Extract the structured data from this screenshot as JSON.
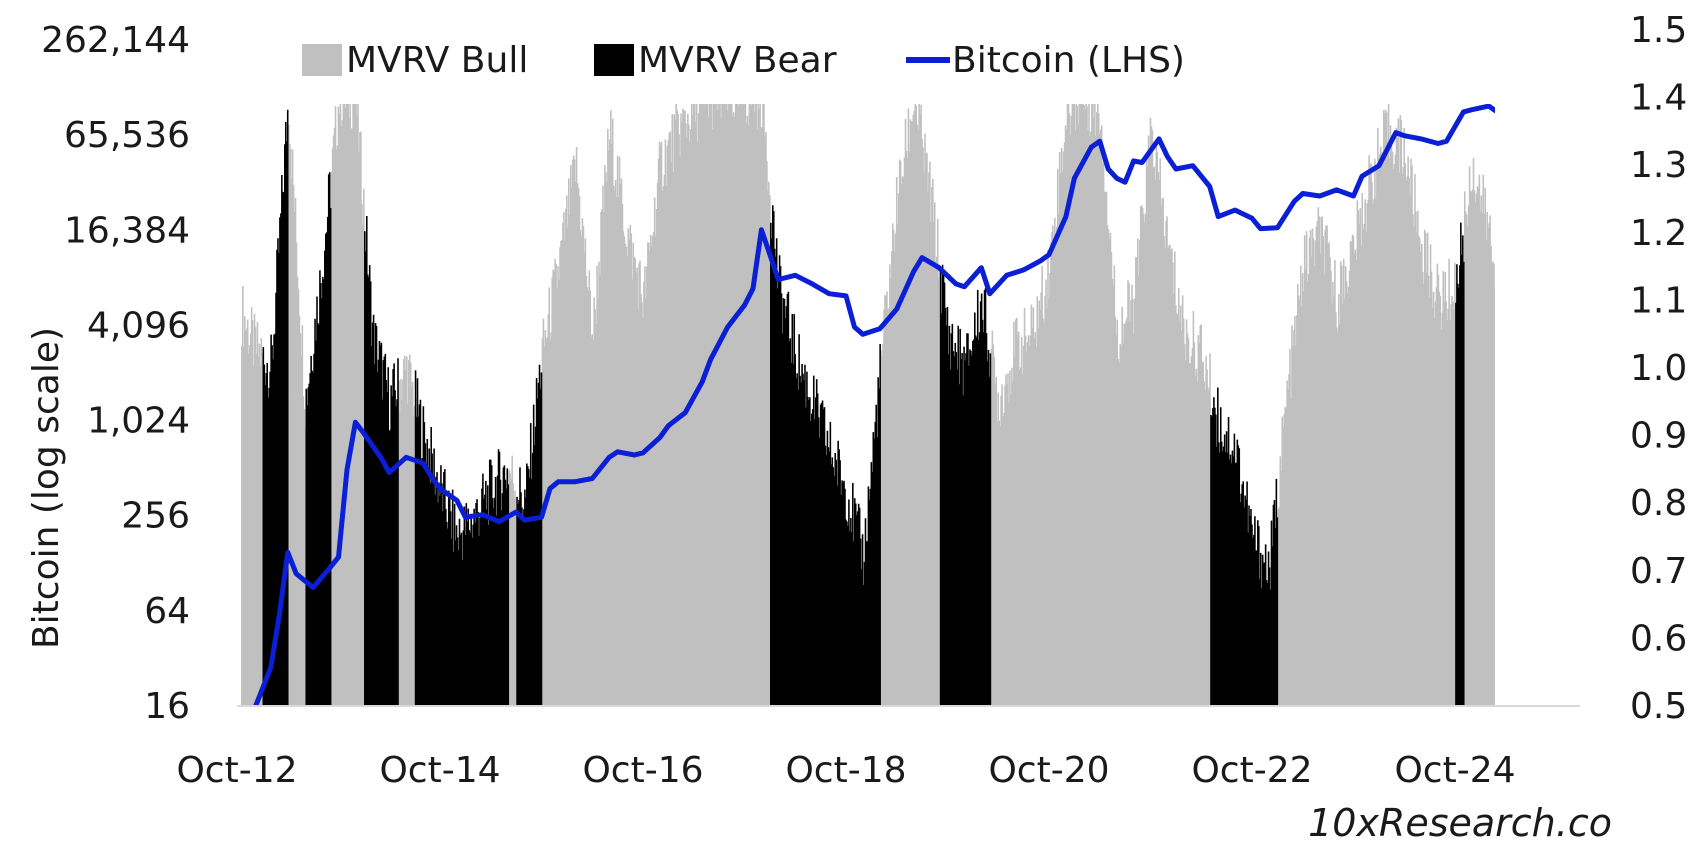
{
  "chart_data": {
    "type": "area",
    "ylabel_left": "Bitcoin (log scale)",
    "ylabel_right": "",
    "left_axis": {
      "scale": "log2",
      "ylim": [
        16,
        262144
      ],
      "ticks": [
        16,
        64,
        256,
        1024,
        4096,
        16384,
        65536,
        262144
      ],
      "tick_labels": [
        "16",
        "64",
        "256",
        "1,024",
        "4,096",
        "16,384",
        "65,536",
        "262,144"
      ]
    },
    "right_axis": {
      "scale": "linear",
      "ylim": [
        0.5,
        1.5
      ],
      "ticks": [
        0.5,
        0.6,
        0.7,
        0.8,
        0.9,
        1.0,
        1.1,
        1.2,
        1.3,
        1.4,
        1.5
      ],
      "tick_labels": [
        "0.5",
        "0.6",
        "0.7",
        "0.8",
        "0.9",
        "1.0",
        "1.1",
        "1.2",
        "1.3",
        "1.4",
        "1.5"
      ]
    },
    "x_axis": {
      "range": [
        "2012-10",
        "2025-06"
      ],
      "ticks": [
        "2012-10",
        "2014-10",
        "2016-10",
        "2018-10",
        "2020-10",
        "2022-10",
        "2024-10"
      ],
      "tick_labels": [
        "Oct-12",
        "Oct-14",
        "Oct-16",
        "Oct-18",
        "Oct-20",
        "Oct-22",
        "Oct-24"
      ]
    },
    "legend": {
      "placement": "top",
      "entries": [
        {
          "label": "MVRV Bull",
          "color": "#c0c0c0",
          "kind": "area"
        },
        {
          "label": "MVRV Bear",
          "color": "#000000",
          "kind": "area"
        },
        {
          "label": "Bitcoin (LHS)",
          "color": "#0a1fd6",
          "kind": "line"
        }
      ]
    },
    "series": [
      {
        "name": "MVRV Bull",
        "axis": "right",
        "color": "#c0c0c0",
        "regime": "bull",
        "segments": [
          [
            "2012-10",
            "2013-01"
          ],
          [
            "2013-04",
            "2013-06"
          ],
          [
            "2013-09",
            "2014-01"
          ],
          [
            "2014-05",
            "2014-07"
          ],
          [
            "2015-06",
            "2015-07"
          ],
          [
            "2015-10",
            "2018-01"
          ],
          [
            "2019-02",
            "2019-09"
          ],
          [
            "2020-03",
            "2022-05"
          ],
          [
            "2023-01",
            "2024-10"
          ],
          [
            "2024-11",
            "2025-05"
          ]
        ],
        "x": [
          "2012-10",
          "2012-12",
          "2013-02",
          "2013-04",
          "2013-06",
          "2013-08",
          "2013-10",
          "2013-12",
          "2014-02",
          "2014-04",
          "2014-06",
          "2014-08",
          "2014-10",
          "2014-12",
          "2015-02",
          "2015-04",
          "2015-06",
          "2015-08",
          "2015-10",
          "2015-12",
          "2016-02",
          "2016-04",
          "2016-06",
          "2016-08",
          "2016-10",
          "2016-12",
          "2017-02",
          "2017-04",
          "2017-06",
          "2017-08",
          "2017-10",
          "2017-12",
          "2018-02",
          "2018-04",
          "2018-06",
          "2018-08",
          "2018-10",
          "2018-12",
          "2019-02",
          "2019-04",
          "2019-06",
          "2019-08",
          "2019-10",
          "2019-12",
          "2020-02",
          "2020-04",
          "2020-06",
          "2020-08",
          "2020-10",
          "2020-12",
          "2021-02",
          "2021-04",
          "2021-06",
          "2021-08",
          "2021-10",
          "2021-12",
          "2022-02",
          "2022-04",
          "2022-06",
          "2022-08",
          "2022-10",
          "2022-12",
          "2023-02",
          "2023-04",
          "2023-06",
          "2023-08",
          "2023-10",
          "2023-12",
          "2024-02",
          "2024-04",
          "2024-06",
          "2024-08",
          "2024-10",
          "2024-12",
          "2025-02",
          "2025-04",
          "2025-05"
        ],
        "values": [
          1.1,
          1.03,
          1.0,
          1.4,
          0.95,
          1.15,
          1.4,
          1.4,
          1.05,
          0.95,
          1.0,
          0.9,
          0.82,
          0.75,
          0.78,
          0.82,
          0.85,
          0.8,
          1.02,
          1.15,
          1.3,
          1.05,
          1.35,
          1.2,
          1.1,
          1.3,
          1.35,
          1.38,
          1.4,
          1.4,
          1.4,
          1.4,
          1.12,
          1.02,
          0.95,
          0.88,
          0.82,
          0.72,
          1.0,
          1.25,
          1.4,
          1.25,
          1.05,
          1.0,
          1.1,
          0.95,
          1.03,
          1.05,
          1.15,
          1.38,
          1.4,
          1.38,
          1.05,
          1.1,
          1.35,
          1.18,
          1.05,
          1.02,
          0.92,
          0.88,
          0.75,
          0.7,
          0.95,
          1.15,
          1.2,
          1.1,
          1.18,
          1.28,
          1.35,
          1.32,
          1.18,
          1.1,
          1.12,
          1.3,
          1.2,
          1.0,
          1.05
        ]
      },
      {
        "name": "MVRV Bear",
        "axis": "right",
        "color": "#000000",
        "regime": "bear",
        "segments": [
          [
            "2013-01",
            "2013-04"
          ],
          [
            "2013-06",
            "2013-09"
          ],
          [
            "2014-01",
            "2014-05"
          ],
          [
            "2014-07",
            "2015-06"
          ],
          [
            "2015-07",
            "2015-10"
          ],
          [
            "2018-01",
            "2019-02"
          ],
          [
            "2019-09",
            "2020-03"
          ],
          [
            "2022-05",
            "2023-01"
          ],
          [
            "2024-10",
            "2024-11"
          ],
          [
            "2025-05",
            "2025-06"
          ]
        ]
      },
      {
        "name": "Bitcoin (LHS)",
        "axis": "left",
        "color": "#0a1fd6",
        "x": [
          "2012-10",
          "2012-12",
          "2013-02",
          "2013-03",
          "2013-04",
          "2013-05",
          "2013-07",
          "2013-09",
          "2013-10",
          "2013-11",
          "2013-12",
          "2014-01",
          "2014-03",
          "2014-04",
          "2014-06",
          "2014-08",
          "2014-09",
          "2014-10",
          "2014-12",
          "2015-01",
          "2015-03",
          "2015-05",
          "2015-07",
          "2015-08",
          "2015-10",
          "2015-11",
          "2015-12",
          "2016-02",
          "2016-04",
          "2016-06",
          "2016-07",
          "2016-09",
          "2016-10",
          "2016-12",
          "2017-01",
          "2017-03",
          "2017-05",
          "2017-06",
          "2017-08",
          "2017-10",
          "2017-11",
          "2017-12",
          "2018-01",
          "2018-02",
          "2018-04",
          "2018-06",
          "2018-08",
          "2018-10",
          "2018-11",
          "2018-12",
          "2019-02",
          "2019-04",
          "2019-06",
          "2019-07",
          "2019-09",
          "2019-11",
          "2019-12",
          "2020-02",
          "2020-03",
          "2020-05",
          "2020-07",
          "2020-09",
          "2020-10",
          "2020-12",
          "2021-01",
          "2021-03",
          "2021-04",
          "2021-05",
          "2021-06",
          "2021-07",
          "2021-08",
          "2021-09",
          "2021-11",
          "2021-12",
          "2022-01",
          "2022-03",
          "2022-05",
          "2022-06",
          "2022-08",
          "2022-10",
          "2022-11",
          "2023-01",
          "2023-03",
          "2023-04",
          "2023-06",
          "2023-08",
          "2023-10",
          "2023-11",
          "2024-01",
          "2024-03",
          "2024-04",
          "2024-06",
          "2024-08",
          "2024-09",
          "2024-11",
          "2024-12",
          "2025-02",
          "2025-04",
          "2025-05"
        ],
        "values": [
          12,
          15,
          28,
          60,
          150,
          110,
          90,
          120,
          140,
          500,
          1000,
          850,
          600,
          480,
          600,
          550,
          450,
          380,
          320,
          250,
          260,
          235,
          270,
          240,
          250,
          380,
          420,
          420,
          440,
          600,
          650,
          620,
          640,
          800,
          950,
          1150,
          1800,
          2500,
          4000,
          5500,
          7000,
          16500,
          11500,
          8000,
          8500,
          7500,
          6500,
          6300,
          4000,
          3600,
          3900,
          5200,
          9000,
          11000,
          9500,
          7500,
          7200,
          9500,
          6500,
          8500,
          9200,
          10500,
          11500,
          20000,
          35000,
          55000,
          60000,
          40000,
          35000,
          33000,
          45000,
          44000,
          62000,
          48000,
          40000,
          42000,
          31000,
          20000,
          22000,
          19500,
          16800,
          17000,
          25000,
          28000,
          27000,
          29500,
          27000,
          36000,
          42000,
          68000,
          65000,
          62000,
          58000,
          60000,
          92000,
          95000,
          100000,
          84000,
          95000
        ]
      }
    ]
  },
  "watermark": "10xResearch.co"
}
